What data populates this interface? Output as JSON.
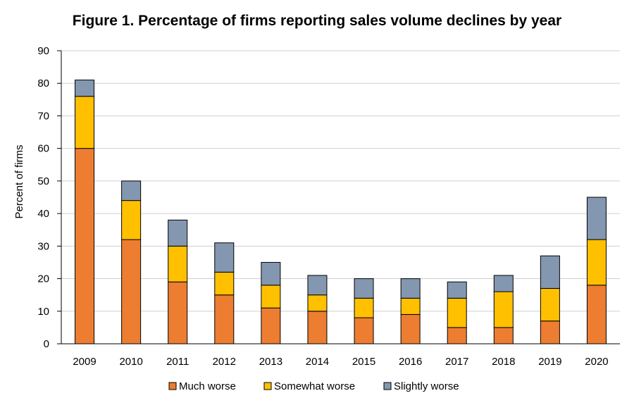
{
  "chart_data": {
    "type": "bar",
    "stacked": true,
    "title": "Figure 1. Percentage of firms reporting sales volume declines by year",
    "xlabel": "",
    "ylabel": "Percent of firms",
    "ylim": [
      0,
      90
    ],
    "yticks": [
      0,
      10,
      20,
      30,
      40,
      50,
      60,
      70,
      80,
      90
    ],
    "grid": true,
    "legend": "bottom",
    "categories": [
      "2009",
      "2010",
      "2011",
      "2012",
      "2013",
      "2014",
      "2015",
      "2016",
      "2017",
      "2018",
      "2019",
      "2020"
    ],
    "series": [
      {
        "name": "Much worse",
        "color": "#ED7D31",
        "values": [
          60,
          32,
          19,
          15,
          11,
          10,
          8,
          9,
          5,
          5,
          7,
          18
        ]
      },
      {
        "name": "Somewhat worse",
        "color": "#FFC000",
        "values": [
          16,
          12,
          11,
          7,
          7,
          5,
          6,
          5,
          9,
          11,
          10,
          14
        ]
      },
      {
        "name": "Slightly worse",
        "color": "#8497B0",
        "values": [
          5,
          6,
          8,
          9,
          7,
          6,
          6,
          6,
          5,
          5,
          10,
          13
        ]
      }
    ]
  }
}
